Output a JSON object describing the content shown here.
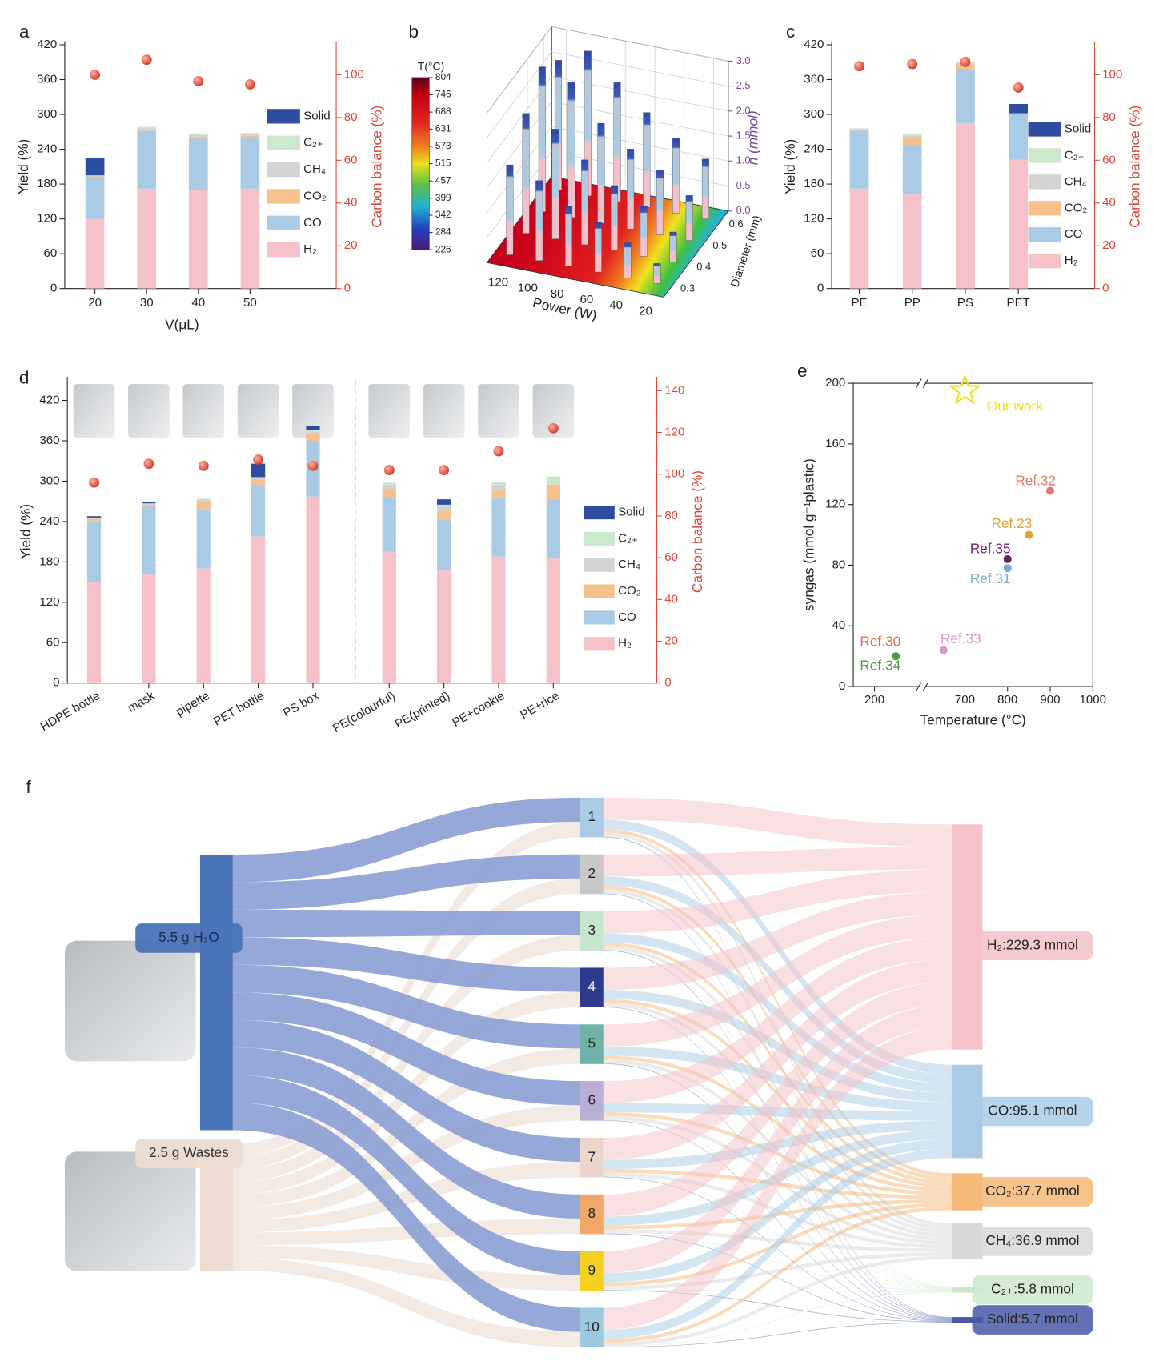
{
  "chart_data": [
    {
      "panel": "a",
      "type": "bar",
      "stacked": true,
      "categories": [
        20,
        30,
        40,
        50
      ],
      "xlabel": "V(μL)",
      "ylabel": "Yield (%)",
      "y2label": "Carbon balance (%)",
      "ylim": [
        0,
        420
      ],
      "yticks": [
        0,
        60,
        120,
        180,
        240,
        300,
        360,
        420
      ],
      "y2lim": [
        0,
        114
      ],
      "y2ticks": [
        0,
        20,
        40,
        60,
        80,
        100
      ],
      "series": [
        {
          "name": "H₂",
          "color": "#f4c2c8",
          "values": [
            120,
            172,
            170,
            172
          ]
        },
        {
          "name": "CO",
          "color": "#a9cbe5",
          "values": [
            73,
            100,
            88,
            88
          ]
        },
        {
          "name": "CO₂",
          "color": "#f5c28e",
          "values": [
            1,
            2,
            3,
            3
          ]
        },
        {
          "name": "CH₄",
          "color": "#d3d3d3",
          "values": [
            1,
            3,
            4,
            3
          ]
        },
        {
          "name": "C₂₊",
          "color": "#cce8cc",
          "values": [
            0,
            2,
            2,
            2
          ]
        },
        {
          "name": "Solid",
          "color": "#2f4da0",
          "values": [
            30,
            0,
            0,
            0
          ]
        }
      ],
      "carbon_balance": {
        "axis": "y2",
        "color": "#d9473a",
        "values": [
          100,
          107,
          97,
          95.5
        ]
      }
    },
    {
      "panel": "b",
      "type": "bar3d",
      "xlabel": "Power (W)",
      "ylabel": "Diameter (mm)",
      "zlabel": "n (mmol)",
      "colorbar_label": "T(°C)",
      "xlim": [
        10,
        130
      ],
      "xticks": [
        120,
        100,
        80,
        60,
        40,
        20
      ],
      "ylim": [
        0.25,
        0.65
      ],
      "yticks": [
        0.3,
        0.4,
        0.5,
        0.6
      ],
      "zlim": [
        0,
        3
      ],
      "zticks": [
        {
          "value": 0,
          "label": "0.0"
        },
        0.5,
        {
          "value": 1,
          "label": "1.0"
        },
        1.5,
        {
          "value": 2,
          "label": "2.0"
        },
        2.5,
        {
          "value": 3,
          "label": "3.0"
        }
      ],
      "clim": [
        226,
        804
      ],
      "cticks": [
        804,
        746,
        688,
        631,
        573,
        515,
        457,
        399,
        342,
        284,
        226
      ],
      "bars": [
        {
          "power": 120,
          "diameter": 0.3,
          "n": 1.8
        },
        {
          "power": 120,
          "diameter": 0.4,
          "n": 2.4
        },
        {
          "power": 120,
          "diameter": 0.5,
          "n": 2.9
        },
        {
          "power": 120,
          "diameter": 0.6,
          "n": 2.6
        },
        {
          "power": 100,
          "diameter": 0.3,
          "n": 1.6
        },
        {
          "power": 100,
          "diameter": 0.4,
          "n": 2.2
        },
        {
          "power": 100,
          "diameter": 0.5,
          "n": 2.7
        },
        {
          "power": 100,
          "diameter": 0.6,
          "n": 2.9
        },
        {
          "power": 80,
          "diameter": 0.3,
          "n": 1.2
        },
        {
          "power": 80,
          "diameter": 0.4,
          "n": 1.7
        },
        {
          "power": 80,
          "diameter": 0.5,
          "n": 2.0
        },
        {
          "power": 80,
          "diameter": 0.6,
          "n": 2.4
        },
        {
          "power": 60,
          "diameter": 0.3,
          "n": 1.0
        },
        {
          "power": 60,
          "diameter": 0.4,
          "n": 1.3
        },
        {
          "power": 60,
          "diameter": 0.5,
          "n": 1.6
        },
        {
          "power": 60,
          "diameter": 0.6,
          "n": 1.9
        },
        {
          "power": 40,
          "diameter": 0.3,
          "n": 0.7
        },
        {
          "power": 40,
          "diameter": 0.4,
          "n": 1.0
        },
        {
          "power": 40,
          "diameter": 0.5,
          "n": 1.3
        },
        {
          "power": 40,
          "diameter": 0.6,
          "n": 1.5
        },
        {
          "power": 20,
          "diameter": 0.3,
          "n": 0.4
        },
        {
          "power": 20,
          "diameter": 0.4,
          "n": 0.6
        },
        {
          "power": 20,
          "diameter": 0.5,
          "n": 0.9
        },
        {
          "power": 20,
          "diameter": 0.6,
          "n": 1.2
        }
      ]
    },
    {
      "panel": "c",
      "type": "bar",
      "stacked": true,
      "categories": [
        "PE",
        "PP",
        "PS",
        "PET"
      ],
      "ylabel": "Yield (%)",
      "y2label": "Carbon balance (%)",
      "ylim": [
        0,
        420
      ],
      "yticks": [
        0,
        60,
        120,
        180,
        240,
        300,
        360,
        420
      ],
      "y2lim": [
        0,
        114
      ],
      "y2ticks": [
        0,
        20,
        40,
        60,
        80,
        100
      ],
      "series": [
        {
          "name": "H₂",
          "color": "#f4c2c8",
          "values": [
            172,
            162,
            285,
            222
          ]
        },
        {
          "name": "CO",
          "color": "#a9cbe5",
          "values": [
            100,
            85,
            93,
            80
          ]
        },
        {
          "name": "CO₂",
          "color": "#f5c28e",
          "values": [
            1,
            12,
            8,
            0
          ]
        },
        {
          "name": "CH₄",
          "color": "#d3d3d3",
          "values": [
            2,
            5,
            3,
            0
          ]
        },
        {
          "name": "C₂₊",
          "color": "#cce8cc",
          "values": [
            1,
            3,
            1,
            0
          ]
        },
        {
          "name": "Solid",
          "color": "#2f4da0",
          "values": [
            0,
            0,
            0,
            16
          ]
        }
      ],
      "carbon_balance": {
        "axis": "y2",
        "color": "#d9473a",
        "values": [
          104,
          105,
          106,
          94
        ]
      }
    },
    {
      "panel": "d",
      "type": "bar",
      "stacked": true,
      "categories": [
        "HDPE bottle",
        "mask",
        "pipette",
        "PET bottle",
        "PS box",
        "PE(colourful)",
        "PE(printed)",
        "PE+cookie",
        "PE+rice"
      ],
      "ylabel": "Yield (%)",
      "y2label": "Carbon balance (%)",
      "ylim": [
        0,
        450
      ],
      "yticks": [
        0,
        60,
        120,
        180,
        240,
        300,
        360,
        420
      ],
      "y2lim": [
        0,
        145
      ],
      "y2ticks": [
        0,
        20,
        40,
        60,
        80,
        100,
        120,
        140
      ],
      "series": [
        {
          "name": "H₂",
          "color": "#f4c2c8",
          "values": [
            150,
            162,
            170,
            218,
            277,
            195,
            168,
            188,
            185
          ]
        },
        {
          "name": "CO",
          "color": "#a9cbe5",
          "values": [
            90,
            100,
            88,
            75,
            83,
            80,
            75,
            88,
            88
          ]
        },
        {
          "name": "CO₂",
          "color": "#f5c28e",
          "values": [
            4,
            3,
            12,
            10,
            10,
            12,
            13,
            10,
            22
          ]
        },
        {
          "name": "CH₄",
          "color": "#d3d3d3",
          "values": [
            2,
            2,
            3,
            3,
            4,
            8,
            7,
            8,
            0
          ]
        },
        {
          "name": "C₂₊",
          "color": "#cce8cc",
          "values": [
            0,
            0,
            1,
            0,
            2,
            3,
            2,
            5,
            12
          ]
        },
        {
          "name": "Solid",
          "color": "#2f4da0",
          "values": [
            2,
            2,
            0,
            20,
            6,
            0,
            8,
            0,
            0
          ]
        }
      ],
      "carbon_balance": {
        "axis": "y2",
        "color": "#d9473a",
        "values": [
          96,
          105,
          104,
          107,
          104,
          102,
          102,
          111,
          122
        ]
      }
    },
    {
      "panel": "e",
      "type": "scatter",
      "xlabel": "Temperature (°C)",
      "ylabel": "syngas (mmol g⁻¹plastic)",
      "xlim": [
        150,
        1000
      ],
      "xbreak": [
        312,
        600
      ],
      "xticks": [
        200,
        700,
        800,
        900,
        1000
      ],
      "ylim": [
        0,
        200
      ],
      "yticks": [
        0,
        40,
        80,
        120,
        160,
        200
      ],
      "points": [
        {
          "label": "Ref.32",
          "x": 900,
          "y": 129,
          "color": "#e07a6a"
        },
        {
          "label": "Ref.23",
          "x": 850,
          "y": 100,
          "color": "#e8a030"
        },
        {
          "label": "Ref.35",
          "x": 800,
          "y": 84,
          "color": "#6a1f6a"
        },
        {
          "label": "Ref.31",
          "x": 800,
          "y": 78,
          "color": "#7aa8d8"
        },
        {
          "label": "Ref.33",
          "x": 650,
          "y": 24,
          "color": "#d898c8"
        },
        {
          "label": "Ref.30",
          "x": 250,
          "y": 20,
          "color": "#e06a5a"
        },
        {
          "label": "Ref.34",
          "x": 250,
          "y": 20,
          "color": "#4a9a4a"
        },
        {
          "label": "Our work",
          "x": 700,
          "y": 195,
          "color": "#ece020",
          "marker": "star"
        }
      ]
    },
    {
      "panel": "f",
      "type": "sankey",
      "sources": [
        {
          "label": "5.5 g H₂O",
          "color": "#4a74b8"
        },
        {
          "label": "2.5 g Wastes",
          "color": "#ecdcd2"
        }
      ],
      "steps": [
        "1",
        "2",
        "3",
        "4",
        "5",
        "6",
        "7",
        "8",
        "9",
        "10"
      ],
      "products": [
        {
          "value": 229.3,
          "label": "H₂:229.3 mmol",
          "color": "#f4c2c8"
        },
        {
          "value": 95.1,
          "label": "CO:95.1 mmol",
          "color": "#a9cbe5"
        },
        {
          "value": 37.7,
          "label": "CO₂:37.7 mmol",
          "color": "#f5b878"
        },
        {
          "value": 36.9,
          "label": "CH₄:36.9 mmol",
          "color": "#d8d8d8"
        },
        {
          "value": 5.8,
          "label": "C₂₊:5.8 mmol",
          "color": "#cce8cc"
        },
        {
          "value": 5.7,
          "label": "Solid:5.7 mmol",
          "color": "#4a58a8"
        }
      ]
    }
  ]
}
